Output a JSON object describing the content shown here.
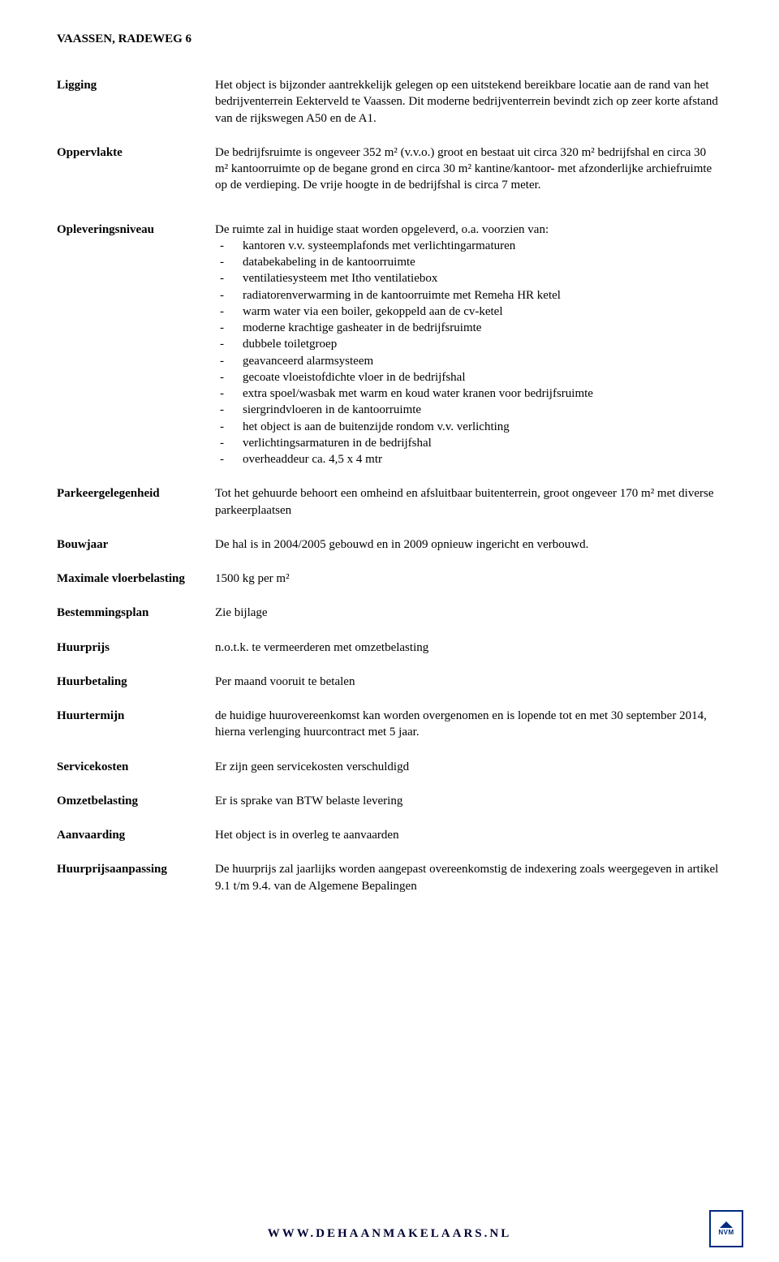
{
  "title": "VAASSEN, RADEWEG 6",
  "sections": [
    {
      "label": "Ligging",
      "type": "text",
      "text": "Het object is bijzonder aantrekkelijk gelegen op een uitstekend bereikbare locatie aan de rand van het bedrijventerrein Eekterveld te Vaassen. Dit moderne bedrijventerrein bevindt zich op zeer korte afstand van de rijkswegen A50 en de A1."
    },
    {
      "label": "Oppervlakte",
      "type": "text",
      "text": "De bedrijfsruimte is ongeveer 352 m² (v.v.o.) groot en bestaat uit circa 320 m² bedrijfshal en circa 30 m² kantoorruimte op de begane grond en circa 30 m² kantine/kantoor- met afzonderlijke archiefruimte op de verdieping. De vrije hoogte in de bedrijfshal is circa 7 meter."
    },
    {
      "label": "Opleveringsniveau",
      "type": "list",
      "intro": "De ruimte zal in huidige staat worden opgeleverd, o.a. voorzien van:",
      "items": [
        "kantoren v.v. systeemplafonds met verlichtingarmaturen",
        "databekabeling in de kantoorruimte",
        "ventilatiesysteem met Itho ventilatiebox",
        "radiatorenverwarming in de kantoorruimte met Remeha HR ketel",
        "warm water via een boiler, gekoppeld aan de cv-ketel",
        "moderne krachtige gasheater in de bedrijfsruimte",
        "dubbele toiletgroep",
        "geavanceerd alarmsysteem",
        "gecoate vloeistofdichte vloer in de bedrijfshal",
        "extra spoel/wasbak met warm en koud water kranen voor bedrijfsruimte",
        "siergrindvloeren in de kantoorruimte",
        "het object is aan de buitenzijde rondom v.v. verlichting",
        "verlichtingsarmaturen in de bedrijfshal",
        "overheaddeur ca. 4,5 x 4 mtr"
      ]
    },
    {
      "label": "Parkeergelegenheid",
      "type": "text",
      "text": "Tot het gehuurde behoort een omheind en afsluitbaar buitenterrein, groot ongeveer 170 m² met diverse parkeerplaatsen"
    },
    {
      "label": "Bouwjaar",
      "type": "text",
      "text": "De hal is in 2004/2005 gebouwd en in 2009 opnieuw ingericht en verbouwd."
    },
    {
      "label": "Maximale vloerbelasting",
      "type": "text",
      "text": "1500 kg per m²"
    },
    {
      "label": "Bestemmingsplan",
      "type": "text",
      "text": "Zie bijlage"
    },
    {
      "label": "Huurprijs",
      "type": "text",
      "text": "n.o.t.k. te vermeerderen met omzetbelasting"
    },
    {
      "label": "Huurbetaling",
      "type": "text",
      "text": "Per maand vooruit te betalen"
    },
    {
      "label": "Huurtermijn",
      "type": "text",
      "text": "de huidige huurovereenkomst kan worden overgenomen en is lopende tot en met 30 september 2014, hierna verlenging huurcontract met 5 jaar."
    },
    {
      "label": "Servicekosten",
      "type": "text",
      "text": "Er zijn geen servicekosten verschuldigd"
    },
    {
      "label": "Omzetbelasting",
      "type": "text",
      "text": "Er is sprake van BTW belaste levering"
    },
    {
      "label": "Aanvaarding",
      "type": "text",
      "text": "Het object is in overleg te aanvaarden"
    },
    {
      "label": "Huurprijsaanpassing",
      "type": "text",
      "text": "De huurprijs zal jaarlijks worden aangepast overeenkomstig de indexering zoals weergegeven in artikel 9.1 t/m 9.4. van de Algemene Bepalingen"
    }
  ],
  "footer": "WWW.DEHAANMAKELAARS.NL",
  "logo": "NVM"
}
